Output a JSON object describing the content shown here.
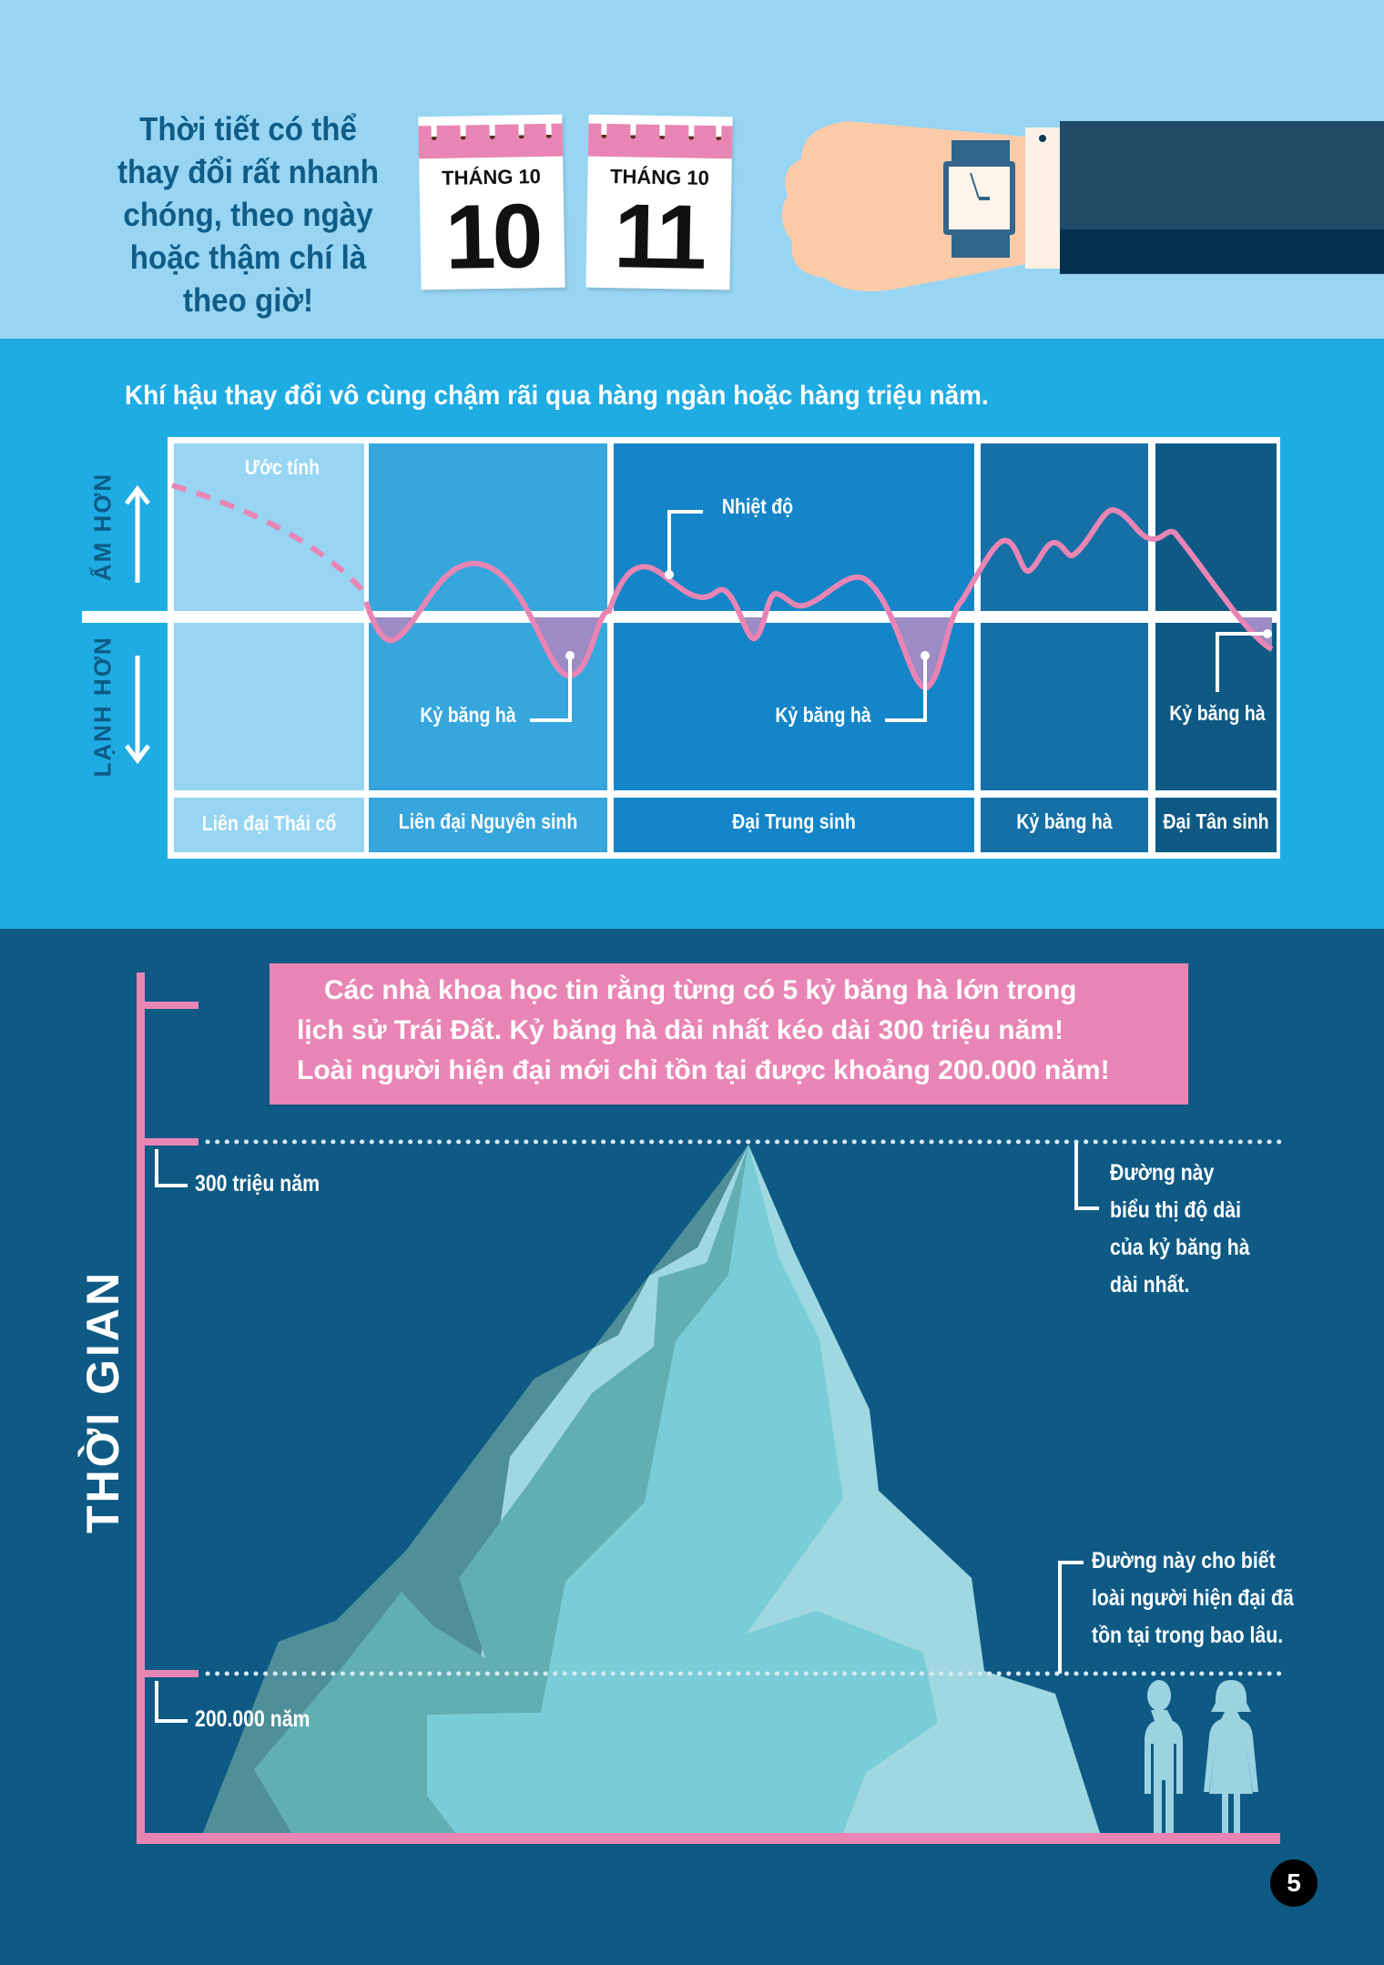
{
  "weather": {
    "lines": [
      "Thời tiết có thể",
      "thay đổi rất nhanh",
      "chóng, theo ngày",
      "hoặc thậm chí là",
      "theo giờ!"
    ],
    "calendars": [
      {
        "month": "THÁNG 10",
        "day": "10"
      },
      {
        "month": "THÁNG 10",
        "day": "11"
      }
    ],
    "icons": [
      "calendar-icon",
      "wristwatch-icon"
    ]
  },
  "climate": {
    "title": "Khí hậu thay đổi vô cùng chậm rãi qua hàng ngàn hoặc hàng triệu năm.",
    "warmer": "ẤM HƠN",
    "colder": "LẠNH HƠN",
    "estimate": "Ước tính",
    "temperature": "Nhiệt độ",
    "ice_age": "Kỷ băng hà",
    "eras": [
      "Liên đại Thái cổ",
      "Liên đại Nguyên sinh",
      "Đại Trung sinh",
      "Kỷ băng hà",
      "Đại Tân sinh"
    ],
    "colors": {
      "curve": "#E985B4",
      "ice_fill": "#9C8BC4",
      "eras": [
        "#97D5F3",
        "#37A6DD",
        "#1485C8",
        "#1670A6",
        "#0E5A85"
      ]
    }
  },
  "timeline": {
    "fact_lines": [
      "Các nhà khoa học tin rằng từng có 5 kỷ băng hà lớn trong",
      "lịch sử Trái Đất. Kỷ băng hà dài nhất kéo dài 300 triệu năm!",
      "Loài người hiện đại mới chỉ tồn tại được khoảng 200.000 năm!"
    ],
    "axis_label": "THỜI GIAN",
    "mark_300": "300 triệu năm",
    "mark_200k": "200.000 năm",
    "note_longest": [
      "Đường này",
      "biểu thị độ dài",
      "của kỷ băng hà",
      "dài nhất."
    ],
    "note_humans": [
      "Đường này cho biết",
      "loài người hiện đại đã",
      "tồn tại trong bao lâu."
    ],
    "accent": "#E985B4"
  },
  "page_number": "5"
}
